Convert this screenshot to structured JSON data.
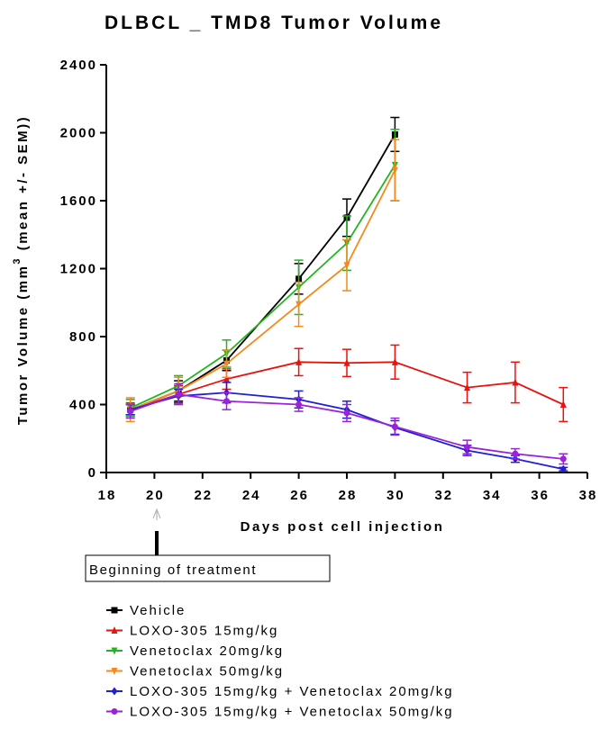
{
  "chart_data": {
    "type": "line",
    "title": "DLBCL _ TMD8 Tumor Volume",
    "xlabel": "Days post cell injection",
    "ylabel_main": "Tumor Volume (mm",
    "ylabel_sup": "3",
    "ylabel_end": " (mean +/- SEM))",
    "xlim": [
      18,
      38
    ],
    "ylim": [
      0,
      2400
    ],
    "x_ticks": [
      "18",
      "20",
      "22",
      "24",
      "26",
      "28",
      "30",
      "32",
      "34",
      "36",
      "38"
    ],
    "y_ticks": [
      "0",
      "400",
      "800",
      "1200",
      "1600",
      "2000",
      "2400"
    ],
    "annotation": {
      "text": "Beginning of treatment",
      "x": 20
    },
    "series": [
      {
        "name": "Vehicle",
        "color": "#000000",
        "marker": "square",
        "x": [
          19,
          21,
          23,
          26,
          28,
          30
        ],
        "y": [
          370,
          480,
          660,
          1140,
          1500,
          1990
        ],
        "err": [
          30,
          60,
          60,
          90,
          110,
          100
        ]
      },
      {
        "name": "LOXO-305 15mg/kg",
        "color": "#e8120e",
        "marker": "triangle-up",
        "x": [
          19,
          21,
          23,
          26,
          28,
          30,
          33,
          35,
          37
        ],
        "y": [
          370,
          460,
          550,
          650,
          645,
          650,
          500,
          530,
          400
        ],
        "err": [
          40,
          50,
          60,
          80,
          80,
          100,
          90,
          120,
          100
        ]
      },
      {
        "name": "Venetoclax 20mg/kg",
        "color": "#22b51f",
        "marker": "triangle-down",
        "x": [
          19,
          21,
          23,
          26,
          28,
          30
        ],
        "y": [
          380,
          510,
          700,
          1090,
          1350,
          1810
        ],
        "err": [
          50,
          60,
          80,
          160,
          160,
          210
        ]
      },
      {
        "name": "Venetoclax 50mg/kg",
        "color": "#f5891c",
        "marker": "triangle-down",
        "x": [
          19,
          21,
          23,
          26,
          28,
          30
        ],
        "y": [
          370,
          480,
          640,
          990,
          1220,
          1780
        ],
        "err": [
          70,
          80,
          80,
          130,
          150,
          180
        ]
      },
      {
        "name": "LOXO-305 15mg/kg + Venetoclax 20mg/kg",
        "color": "#1f1fd6",
        "marker": "diamond",
        "x": [
          19,
          21,
          23,
          26,
          28,
          30,
          33,
          35,
          37
        ],
        "y": [
          370,
          450,
          470,
          430,
          370,
          265,
          130,
          80,
          20
        ],
        "err": [
          30,
          40,
          60,
          50,
          50,
          40,
          30,
          20,
          10
        ]
      },
      {
        "name": "LOXO-305 15mg/kg + Venetoclax 50mg/kg",
        "color": "#9b22d8",
        "marker": "circle",
        "x": [
          19,
          21,
          23,
          26,
          28,
          30,
          33,
          35,
          37
        ],
        "y": [
          360,
          460,
          420,
          400,
          350,
          270,
          150,
          110,
          80
        ],
        "err": [
          40,
          60,
          50,
          40,
          50,
          50,
          40,
          30,
          30
        ]
      }
    ]
  }
}
